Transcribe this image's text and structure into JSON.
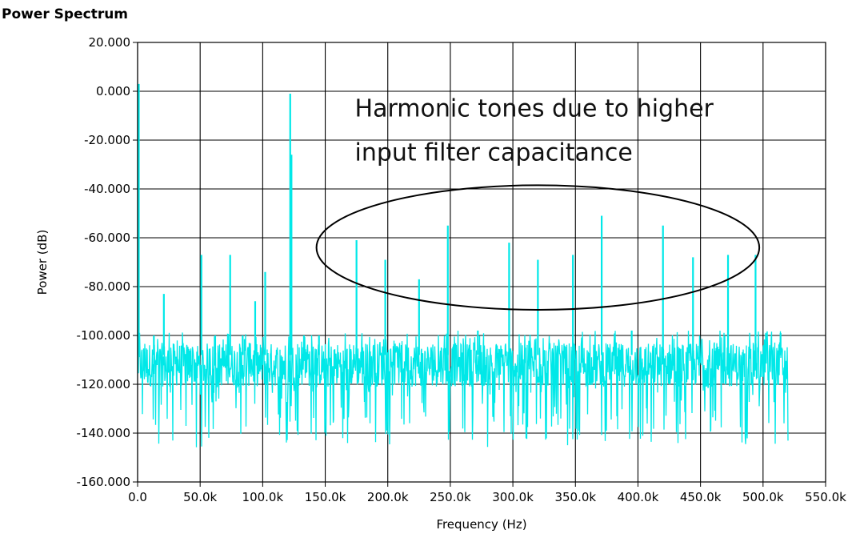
{
  "chart_data": {
    "type": "line",
    "title": "Power Spectrum",
    "xlabel": "Frequency (Hz)",
    "ylabel": "Power (dB)",
    "xlim": [
      0,
      550000
    ],
    "ylim": [
      -160,
      20
    ],
    "x_ticks": [
      0,
      50000,
      100000,
      150000,
      200000,
      250000,
      300000,
      350000,
      400000,
      450000,
      500000,
      550000
    ],
    "x_tick_labels": [
      "0.0",
      "50.0k",
      "100.0k",
      "150.0k",
      "200.0k",
      "250.0k",
      "300.0k",
      "350.0k",
      "400.0k",
      "450.0k",
      "500.0k",
      "550.0k"
    ],
    "y_ticks": [
      20,
      0,
      -20,
      -40,
      -60,
      -80,
      -100,
      -120,
      -140,
      -160
    ],
    "y_tick_labels": [
      "20.000",
      "0.000",
      "-20.000",
      "-40.000",
      "-60.000",
      "-80.000",
      "-100.000",
      "-120.000",
      "-140.000",
      "-160.000"
    ],
    "grid": true,
    "series_color": "#00e8e8",
    "noise_floor_db": -112,
    "x_max_data": 520000,
    "peaks": [
      {
        "x": 0,
        "y": 3
      },
      {
        "x": 13000,
        "y": -100
      },
      {
        "x": 21000,
        "y": -83
      },
      {
        "x": 51000,
        "y": -67
      },
      {
        "x": 62000,
        "y": -100
      },
      {
        "x": 74000,
        "y": -67
      },
      {
        "x": 84000,
        "y": -100
      },
      {
        "x": 94000,
        "y": -86
      },
      {
        "x": 102000,
        "y": -74
      },
      {
        "x": 122000,
        "y": -1
      },
      {
        "x": 123000,
        "y": -26
      },
      {
        "x": 133000,
        "y": -100
      },
      {
        "x": 145000,
        "y": -100
      },
      {
        "x": 175000,
        "y": -61
      },
      {
        "x": 198000,
        "y": -69
      },
      {
        "x": 225000,
        "y": -77
      },
      {
        "x": 248000,
        "y": -55
      },
      {
        "x": 272000,
        "y": -98
      },
      {
        "x": 297000,
        "y": -62
      },
      {
        "x": 320000,
        "y": -69
      },
      {
        "x": 348000,
        "y": -67
      },
      {
        "x": 371000,
        "y": -51
      },
      {
        "x": 395000,
        "y": -98
      },
      {
        "x": 420000,
        "y": -55
      },
      {
        "x": 444000,
        "y": -68
      },
      {
        "x": 472000,
        "y": -67
      },
      {
        "x": 494000,
        "y": -67
      },
      {
        "x": 514000,
        "y": -99
      }
    ],
    "annotations": [
      {
        "type": "text",
        "lines": [
          "Harmonic tones due to higher",
          "input filter capacitance"
        ]
      },
      {
        "type": "ellipse",
        "center": {
          "x": 320000,
          "y": -64
        },
        "rx": 177000,
        "ry": 25.5
      }
    ]
  }
}
